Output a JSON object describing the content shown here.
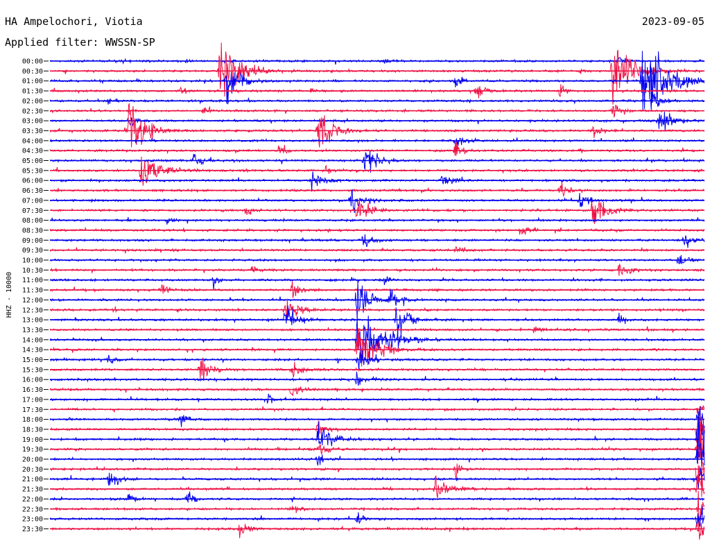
{
  "header": {
    "station": "HA Ampelochori, Viotia",
    "filter": "Applied filter: WWSSN-SP",
    "date": "2023-09-05"
  },
  "chart_data": {
    "type": "line",
    "title": "HA Ampelochori, Viotia",
    "subtitle": "Applied filter: WWSSN-SP",
    "date": "2023-09-05",
    "ylabel": "HHZ - 10000",
    "ytick_labels": [
      "00:00",
      "00:30",
      "01:00",
      "01:30",
      "02:00",
      "02:30",
      "03:00",
      "03:30",
      "04:00",
      "04:30",
      "05:00",
      "05:30",
      "06:00",
      "06:30",
      "07:00",
      "07:30",
      "08:00",
      "08:30",
      "09:00",
      "09:30",
      "10:00",
      "10:30",
      "11:00",
      "11:30",
      "12:00",
      "12:30",
      "13:00",
      "13:30",
      "14:00",
      "14:30",
      "15:00",
      "15:30",
      "16:00",
      "16:30",
      "17:00",
      "17:30",
      "18:00",
      "18:30",
      "19:00",
      "19:30",
      "20:00",
      "20:30",
      "21:00",
      "21:30",
      "22:00",
      "22:30",
      "23:00",
      "23:30"
    ],
    "colors": {
      "even_trace": "#0000ee",
      "odd_trace": "#ee1144"
    },
    "x_minutes_per_trace": 30,
    "events": [
      {
        "trace": 0,
        "minute": 21.0,
        "amp": 3.0,
        "decay": 0.3
      },
      {
        "trace": 0,
        "minute": 28.0,
        "amp": 3.0,
        "decay": 0.2
      },
      {
        "trace": 0,
        "minute": 51.0,
        "amp": 4.0,
        "decay": 0.5
      },
      {
        "trace": 0,
        "minute": 87.0,
        "amp": 6.0,
        "decay": 0.8
      },
      {
        "trace": 1,
        "minute": 26.0,
        "amp": 38.0,
        "decay": 2.5
      },
      {
        "trace": 1,
        "minute": 81.0,
        "amp": 4.0,
        "decay": 0.6
      },
      {
        "trace": 1,
        "minute": 86.0,
        "amp": 45.0,
        "decay": 2.5
      },
      {
        "trace": 2,
        "minute": 27.0,
        "amp": 30.0,
        "decay": 1.5
      },
      {
        "trace": 2,
        "minute": 62.0,
        "amp": 8.0,
        "decay": 0.8
      },
      {
        "trace": 2,
        "minute": 90.5,
        "amp": 55.0,
        "decay": 3.0
      },
      {
        "trace": 3,
        "minute": 20.0,
        "amp": 6.0,
        "decay": 0.6
      },
      {
        "trace": 3,
        "minute": 40.0,
        "amp": 4.0,
        "decay": 0.4
      },
      {
        "trace": 3,
        "minute": 65.0,
        "amp": 12.0,
        "decay": 1.0
      },
      {
        "trace": 3,
        "minute": 78.0,
        "amp": 8.0,
        "decay": 0.6
      },
      {
        "trace": 4,
        "minute": 9.0,
        "amp": 5.0,
        "decay": 0.5
      },
      {
        "trace": 4,
        "minute": 92.0,
        "amp": 12.0,
        "decay": 1.2
      },
      {
        "trace": 5,
        "minute": 23.5,
        "amp": 7.0,
        "decay": 0.6
      },
      {
        "trace": 5,
        "minute": 86.0,
        "amp": 10.0,
        "decay": 0.8
      },
      {
        "trace": 6,
        "minute": 12.0,
        "amp": 8.0,
        "decay": 0.8
      },
      {
        "trace": 6,
        "minute": 93.0,
        "amp": 18.0,
        "decay": 1.5
      },
      {
        "trace": 7,
        "minute": 12.0,
        "amp": 40.0,
        "decay": 2.0
      },
      {
        "trace": 7,
        "minute": 41.0,
        "amp": 38.0,
        "decay": 1.5
      },
      {
        "trace": 7,
        "minute": 83.0,
        "amp": 9.0,
        "decay": 1.0
      },
      {
        "trace": 8,
        "minute": 62.0,
        "amp": 8.0,
        "decay": 1.0
      },
      {
        "trace": 9,
        "minute": 35.0,
        "amp": 8.0,
        "decay": 0.8
      },
      {
        "trace": 9,
        "minute": 62.0,
        "amp": 10.0,
        "decay": 1.0
      },
      {
        "trace": 10,
        "minute": 22.0,
        "amp": 8.0,
        "decay": 1.0
      },
      {
        "trace": 10,
        "minute": 48.0,
        "amp": 22.0,
        "decay": 1.5
      },
      {
        "trace": 11,
        "minute": 14.0,
        "amp": 28.0,
        "decay": 2.0
      },
      {
        "trace": 11,
        "minute": 42.0,
        "amp": 6.0,
        "decay": 0.5
      },
      {
        "trace": 12,
        "minute": 40.0,
        "amp": 12.0,
        "decay": 1.5
      },
      {
        "trace": 12,
        "minute": 60.0,
        "amp": 12.0,
        "decay": 1.0
      },
      {
        "trace": 13,
        "minute": 78.0,
        "amp": 10.0,
        "decay": 1.0
      },
      {
        "trace": 14,
        "minute": 46.0,
        "amp": 14.0,
        "decay": 1.5
      },
      {
        "trace": 14,
        "minute": 81.0,
        "amp": 10.0,
        "decay": 1.0
      },
      {
        "trace": 15,
        "minute": 30.0,
        "amp": 8.0,
        "decay": 0.8
      },
      {
        "trace": 15,
        "minute": 47.0,
        "amp": 20.0,
        "decay": 1.5
      },
      {
        "trace": 15,
        "minute": 83.0,
        "amp": 22.0,
        "decay": 1.8
      },
      {
        "trace": 16,
        "minute": 18.0,
        "amp": 6.0,
        "decay": 0.8
      },
      {
        "trace": 17,
        "minute": 72.0,
        "amp": 8.0,
        "decay": 0.8
      },
      {
        "trace": 18,
        "minute": 48.0,
        "amp": 12.0,
        "decay": 1.0
      },
      {
        "trace": 18,
        "minute": 97.0,
        "amp": 8.0,
        "decay": 1.0
      },
      {
        "trace": 19,
        "minute": 62.0,
        "amp": 6.0,
        "decay": 0.8
      },
      {
        "trace": 20,
        "minute": 96.0,
        "amp": 10.0,
        "decay": 1.0
      },
      {
        "trace": 21,
        "minute": 31.0,
        "amp": 6.0,
        "decay": 0.6
      },
      {
        "trace": 21,
        "minute": 87.0,
        "amp": 10.0,
        "decay": 1.0
      },
      {
        "trace": 22,
        "minute": 25.0,
        "amp": 9.0,
        "decay": 0.8
      },
      {
        "trace": 22,
        "minute": 51.0,
        "amp": 8.0,
        "decay": 0.8
      },
      {
        "trace": 23,
        "minute": 17.0,
        "amp": 8.0,
        "decay": 0.8
      },
      {
        "trace": 23,
        "minute": 37.0,
        "amp": 12.0,
        "decay": 1.0
      },
      {
        "trace": 24,
        "minute": 47.0,
        "amp": 30.0,
        "decay": 1.5
      },
      {
        "trace": 24,
        "minute": 52.0,
        "amp": 14.0,
        "decay": 1.2
      },
      {
        "trace": 25,
        "minute": 36.0,
        "amp": 14.0,
        "decay": 1.5
      },
      {
        "trace": 26,
        "minute": 36.0,
        "amp": 18.0,
        "decay": 1.5
      },
      {
        "trace": 26,
        "minute": 53.0,
        "amp": 22.0,
        "decay": 1.5
      },
      {
        "trace": 26,
        "minute": 87.0,
        "amp": 8.0,
        "decay": 0.8
      },
      {
        "trace": 27,
        "minute": 74.0,
        "amp": 8.0,
        "decay": 0.8
      },
      {
        "trace": 28,
        "minute": 47.0,
        "amp": 45.0,
        "decay": 3.0
      },
      {
        "trace": 28,
        "minute": 52.0,
        "amp": 10.0,
        "decay": 1.0
      },
      {
        "trace": 29,
        "minute": 47.0,
        "amp": 30.0,
        "decay": 2.5
      },
      {
        "trace": 30,
        "minute": 9.0,
        "amp": 8.0,
        "decay": 0.8
      },
      {
        "trace": 30,
        "minute": 47.0,
        "amp": 12.0,
        "decay": 1.5
      },
      {
        "trace": 31,
        "minute": 23.0,
        "amp": 15.0,
        "decay": 1.2
      },
      {
        "trace": 31,
        "minute": 37.0,
        "amp": 10.0,
        "decay": 1.2
      },
      {
        "trace": 32,
        "minute": 47.0,
        "amp": 10.0,
        "decay": 1.2
      },
      {
        "trace": 33,
        "minute": 37.0,
        "amp": 8.0,
        "decay": 1.0
      },
      {
        "trace": 34,
        "minute": 33.0,
        "amp": 8.0,
        "decay": 0.8
      },
      {
        "trace": 35,
        "minute": 99.0,
        "amp": 10.0,
        "decay": 1.0
      },
      {
        "trace": 36,
        "minute": 20.0,
        "amp": 8.0,
        "decay": 0.8
      },
      {
        "trace": 36,
        "minute": 99.0,
        "amp": 20.0,
        "decay": 1.5
      },
      {
        "trace": 37,
        "minute": 41.0,
        "amp": 12.0,
        "decay": 1.0
      },
      {
        "trace": 37,
        "minute": 99.0,
        "amp": 28.0,
        "decay": 2.0
      },
      {
        "trace": 38,
        "minute": 41.0,
        "amp": 20.0,
        "decay": 1.5
      },
      {
        "trace": 38,
        "minute": 99.0,
        "amp": 30.0,
        "decay": 2.0
      },
      {
        "trace": 39,
        "minute": 41.0,
        "amp": 10.0,
        "decay": 1.0
      },
      {
        "trace": 39,
        "minute": 99.0,
        "amp": 28.0,
        "decay": 2.0
      },
      {
        "trace": 40,
        "minute": 41.0,
        "amp": 8.0,
        "decay": 1.0
      },
      {
        "trace": 40,
        "minute": 99.0,
        "amp": 30.0,
        "decay": 2.0
      },
      {
        "trace": 41,
        "minute": 62.0,
        "amp": 8.0,
        "decay": 0.8
      },
      {
        "trace": 41,
        "minute": 99.0,
        "amp": 30.0,
        "decay": 2.0
      },
      {
        "trace": 42,
        "minute": 9.0,
        "amp": 14.0,
        "decay": 1.2
      },
      {
        "trace": 42,
        "minute": 99.0,
        "amp": 20.0,
        "decay": 1.5
      },
      {
        "trace": 43,
        "minute": 59.0,
        "amp": 20.0,
        "decay": 1.5
      },
      {
        "trace": 43,
        "minute": 99.0,
        "amp": 25.0,
        "decay": 2.0
      },
      {
        "trace": 44,
        "minute": 12.0,
        "amp": 8.0,
        "decay": 0.8
      },
      {
        "trace": 44,
        "minute": 21.0,
        "amp": 10.0,
        "decay": 0.8
      },
      {
        "trace": 45,
        "minute": 37.0,
        "amp": 8.0,
        "decay": 0.8
      },
      {
        "trace": 45,
        "minute": 99.0,
        "amp": 25.0,
        "decay": 2.0
      },
      {
        "trace": 46,
        "minute": 47.0,
        "amp": 8.0,
        "decay": 0.8
      },
      {
        "trace": 46,
        "minute": 99.0,
        "amp": 20.0,
        "decay": 1.5
      },
      {
        "trace": 47,
        "minute": 29.0,
        "amp": 12.0,
        "decay": 1.0
      },
      {
        "trace": 47,
        "minute": 99.0,
        "amp": 20.0,
        "decay": 1.5
      }
    ]
  }
}
